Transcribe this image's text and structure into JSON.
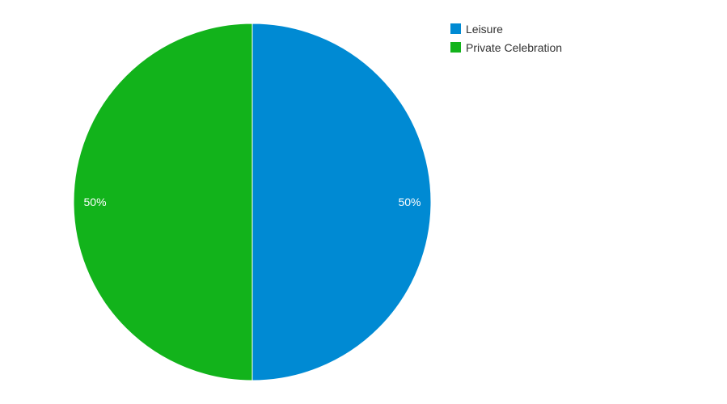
{
  "chart_data": {
    "type": "pie",
    "title": "",
    "categories": [
      "Leisure",
      "Private Celebration"
    ],
    "values": [
      50,
      50
    ],
    "labels": [
      "50%",
      "50%"
    ],
    "colors": [
      "#008ad3",
      "#12b31b"
    ],
    "legend_position": "top-right"
  },
  "legend": {
    "items": [
      {
        "label": "Leisure",
        "color": "#008ad3"
      },
      {
        "label": "Private Celebration",
        "color": "#12b31b"
      }
    ]
  }
}
